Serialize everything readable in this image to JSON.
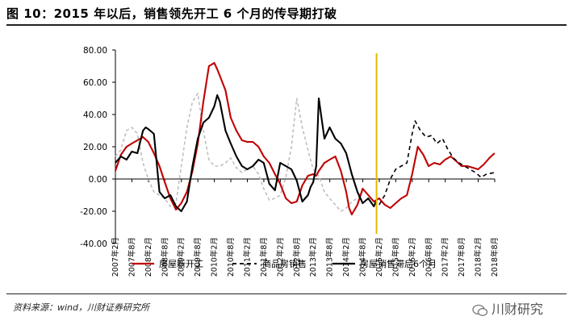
{
  "header": {
    "title": "图 10：2015 年以后，销售领先开工 6 个月的传导期打破"
  },
  "footer": {
    "source": "资料来源：wind，川财证券研究所",
    "watermark": "川财研究"
  },
  "colors": {
    "red": "#c00000",
    "black": "#000000",
    "dashed": "#000000",
    "lightgray": "#bfbfbf",
    "marker": "#e6b800"
  },
  "chart_data": {
    "type": "line",
    "title": "",
    "xlabel": "",
    "ylabel": "",
    "ylim": [
      -40,
      80
    ],
    "yticks": [
      80,
      60,
      40,
      20,
      0,
      -20,
      -40
    ],
    "ytick_labels": [
      "80.00",
      "60.00",
      "40.00",
      "20.00",
      "0.00",
      "-20.00",
      "-40.00"
    ],
    "xlim": [
      2007.083,
      2018.583
    ],
    "xticks": [
      2007.083,
      2007.583,
      2008.083,
      2008.583,
      2009.083,
      2009.583,
      2010.083,
      2010.583,
      2011.083,
      2011.583,
      2012.083,
      2012.583,
      2013.083,
      2013.583,
      2014.083,
      2014.583,
      2015.083,
      2015.583,
      2016.083,
      2016.583,
      2017.083,
      2017.583,
      2018.083,
      2018.583
    ],
    "xtick_labels": [
      "2007年2月",
      "2007年8月",
      "2008年2月",
      "2008年8月",
      "2009年2月",
      "2009年8月",
      "2010年2月",
      "2010年8月",
      "2011年2月",
      "2011年8月",
      "2012年2月",
      "2012年8月",
      "2013年2月",
      "2013年8月",
      "2014年2月",
      "2014年8月",
      "2015年2月",
      "2015年8月",
      "2016年2月",
      "2016年8月",
      "2017年2月",
      "2017年8月",
      "2018年2月",
      "2018年8月"
    ],
    "vline_x": 2015.0,
    "series": [
      {
        "name": "房屋新开工",
        "style": "solid",
        "color": "#c00000",
        "x": [
          2007.08,
          2007.25,
          2007.42,
          2007.58,
          2007.75,
          2007.92,
          2008.08,
          2008.25,
          2008.42,
          2008.58,
          2008.75,
          2008.92,
          2009.08,
          2009.25,
          2009.42,
          2009.58,
          2009.75,
          2009.92,
          2010.08,
          2010.17,
          2010.25,
          2010.42,
          2010.58,
          2010.75,
          2010.92,
          2011.08,
          2011.25,
          2011.42,
          2011.58,
          2011.75,
          2011.92,
          2012.08,
          2012.25,
          2012.42,
          2012.58,
          2012.75,
          2012.92,
          2013.08,
          2013.17,
          2013.25,
          2013.42,
          2013.58,
          2013.75,
          2013.92,
          2014.08,
          2014.17,
          2014.25,
          2014.42,
          2014.58,
          2014.75,
          2014.92,
          2015.08,
          2015.25,
          2015.42,
          2015.58,
          2015.75,
          2015.92,
          2016.08,
          2016.25,
          2016.42,
          2016.58,
          2016.75,
          2016.92,
          2017.08,
          2017.25,
          2017.42,
          2017.58,
          2017.75,
          2017.92,
          2018.08,
          2018.25,
          2018.42,
          2018.58
        ],
        "y": [
          5,
          15,
          20,
          22,
          24,
          26,
          23,
          16,
          8,
          -2,
          -12,
          -19,
          -15,
          -8,
          5,
          22,
          48,
          70,
          72,
          68,
          64,
          55,
          38,
          30,
          24,
          23,
          23,
          20,
          14,
          10,
          3,
          -3,
          -12,
          -15,
          -14,
          -4,
          2,
          3,
          2,
          5,
          10,
          12,
          14,
          5,
          -8,
          -18,
          -22,
          -16,
          -6,
          -10,
          -14,
          -12,
          -16,
          -18,
          -15,
          -12,
          -10,
          3,
          20,
          15,
          8,
          10,
          9,
          12,
          14,
          11,
          8,
          8,
          7,
          6,
          9,
          13,
          16
        ]
      },
      {
        "name": "商品房销售",
        "style": "dashed",
        "color": "#000000",
        "x": [
          2015.08,
          2015.25,
          2015.42,
          2015.58,
          2015.75,
          2015.92,
          2016.08,
          2016.17,
          2016.33,
          2016.5,
          2016.67,
          2016.83,
          2017.0,
          2017.17,
          2017.33,
          2017.5,
          2017.67,
          2017.83,
          2018.0,
          2018.17,
          2018.33,
          2018.58
        ],
        "y": [
          -16,
          -10,
          0,
          6,
          8,
          10,
          28,
          36,
          30,
          26,
          27,
          22,
          25,
          18,
          13,
          10,
          8,
          6,
          4,
          1,
          3,
          4
        ]
      },
      {
        "name": "房屋销售滞后6个月",
        "style": "solid",
        "color": "#000000",
        "x": [
          2007.08,
          2007.25,
          2007.42,
          2007.58,
          2007.75,
          2007.92,
          2008.0,
          2008.08,
          2008.25,
          2008.42,
          2008.58,
          2008.75,
          2008.92,
          2009.08,
          2009.25,
          2009.42,
          2009.58,
          2009.75,
          2009.92,
          2010.08,
          2010.17,
          2010.25,
          2010.42,
          2010.58,
          2010.75,
          2010.92,
          2011.08,
          2011.25,
          2011.42,
          2011.58,
          2011.75,
          2011.92,
          2012.08,
          2012.25,
          2012.42,
          2012.58,
          2012.75,
          2012.92,
          2013.0,
          2013.08,
          2013.17,
          2013.25,
          2013.42,
          2013.58,
          2013.75,
          2013.92,
          2014.08,
          2014.25,
          2014.42,
          2014.58,
          2014.75,
          2014.92,
          2015.0
        ],
        "y": [
          10,
          14,
          12,
          17,
          16,
          30,
          32,
          31,
          28,
          -8,
          -12,
          -10,
          -17,
          -20,
          -14,
          8,
          25,
          35,
          38,
          45,
          52,
          48,
          30,
          22,
          14,
          8,
          6,
          8,
          12,
          10,
          -3,
          -7,
          10,
          8,
          6,
          -1,
          -14,
          -10,
          -5,
          -2,
          8,
          50,
          25,
          32,
          25,
          22,
          16,
          3,
          -8,
          -15,
          -12,
          -17,
          -13
        ]
      },
      {
        "name": "",
        "style": "dashed",
        "color": "#bfbfbf",
        "x": [
          2007.08,
          2007.25,
          2007.42,
          2007.58,
          2007.75,
          2007.92,
          2008.08,
          2008.25,
          2008.42,
          2008.58,
          2008.75,
          2008.92,
          2009.08,
          2009.25,
          2009.42,
          2009.58,
          2009.75,
          2009.92,
          2010.08,
          2010.25,
          2010.42,
          2010.58,
          2010.75,
          2010.92,
          2011.08,
          2011.25,
          2011.42,
          2011.58,
          2011.75,
          2011.92,
          2012.08,
          2012.25,
          2012.42,
          2012.58,
          2012.75,
          2012.92,
          2013.08,
          2013.25,
          2013.42,
          2013.58,
          2013.75,
          2013.92,
          2014.08,
          2014.25,
          2014.42,
          2014.58
        ],
        "y": [
          14,
          18,
          30,
          32,
          28,
          10,
          0,
          -8,
          -10,
          -12,
          -17,
          -15,
          8,
          32,
          48,
          53,
          30,
          12,
          8,
          8,
          10,
          13,
          7,
          4,
          6,
          8,
          3,
          -6,
          -13,
          -12,
          -10,
          1,
          20,
          50,
          32,
          18,
          6,
          2,
          -8,
          -12,
          -16,
          -20,
          -18,
          -14,
          -12,
          -8
        ]
      }
    ],
    "legend": {
      "position": "bottom",
      "entries": [
        "房屋新开工",
        "商品房销售",
        "房屋销售滞后6个月"
      ]
    }
  }
}
